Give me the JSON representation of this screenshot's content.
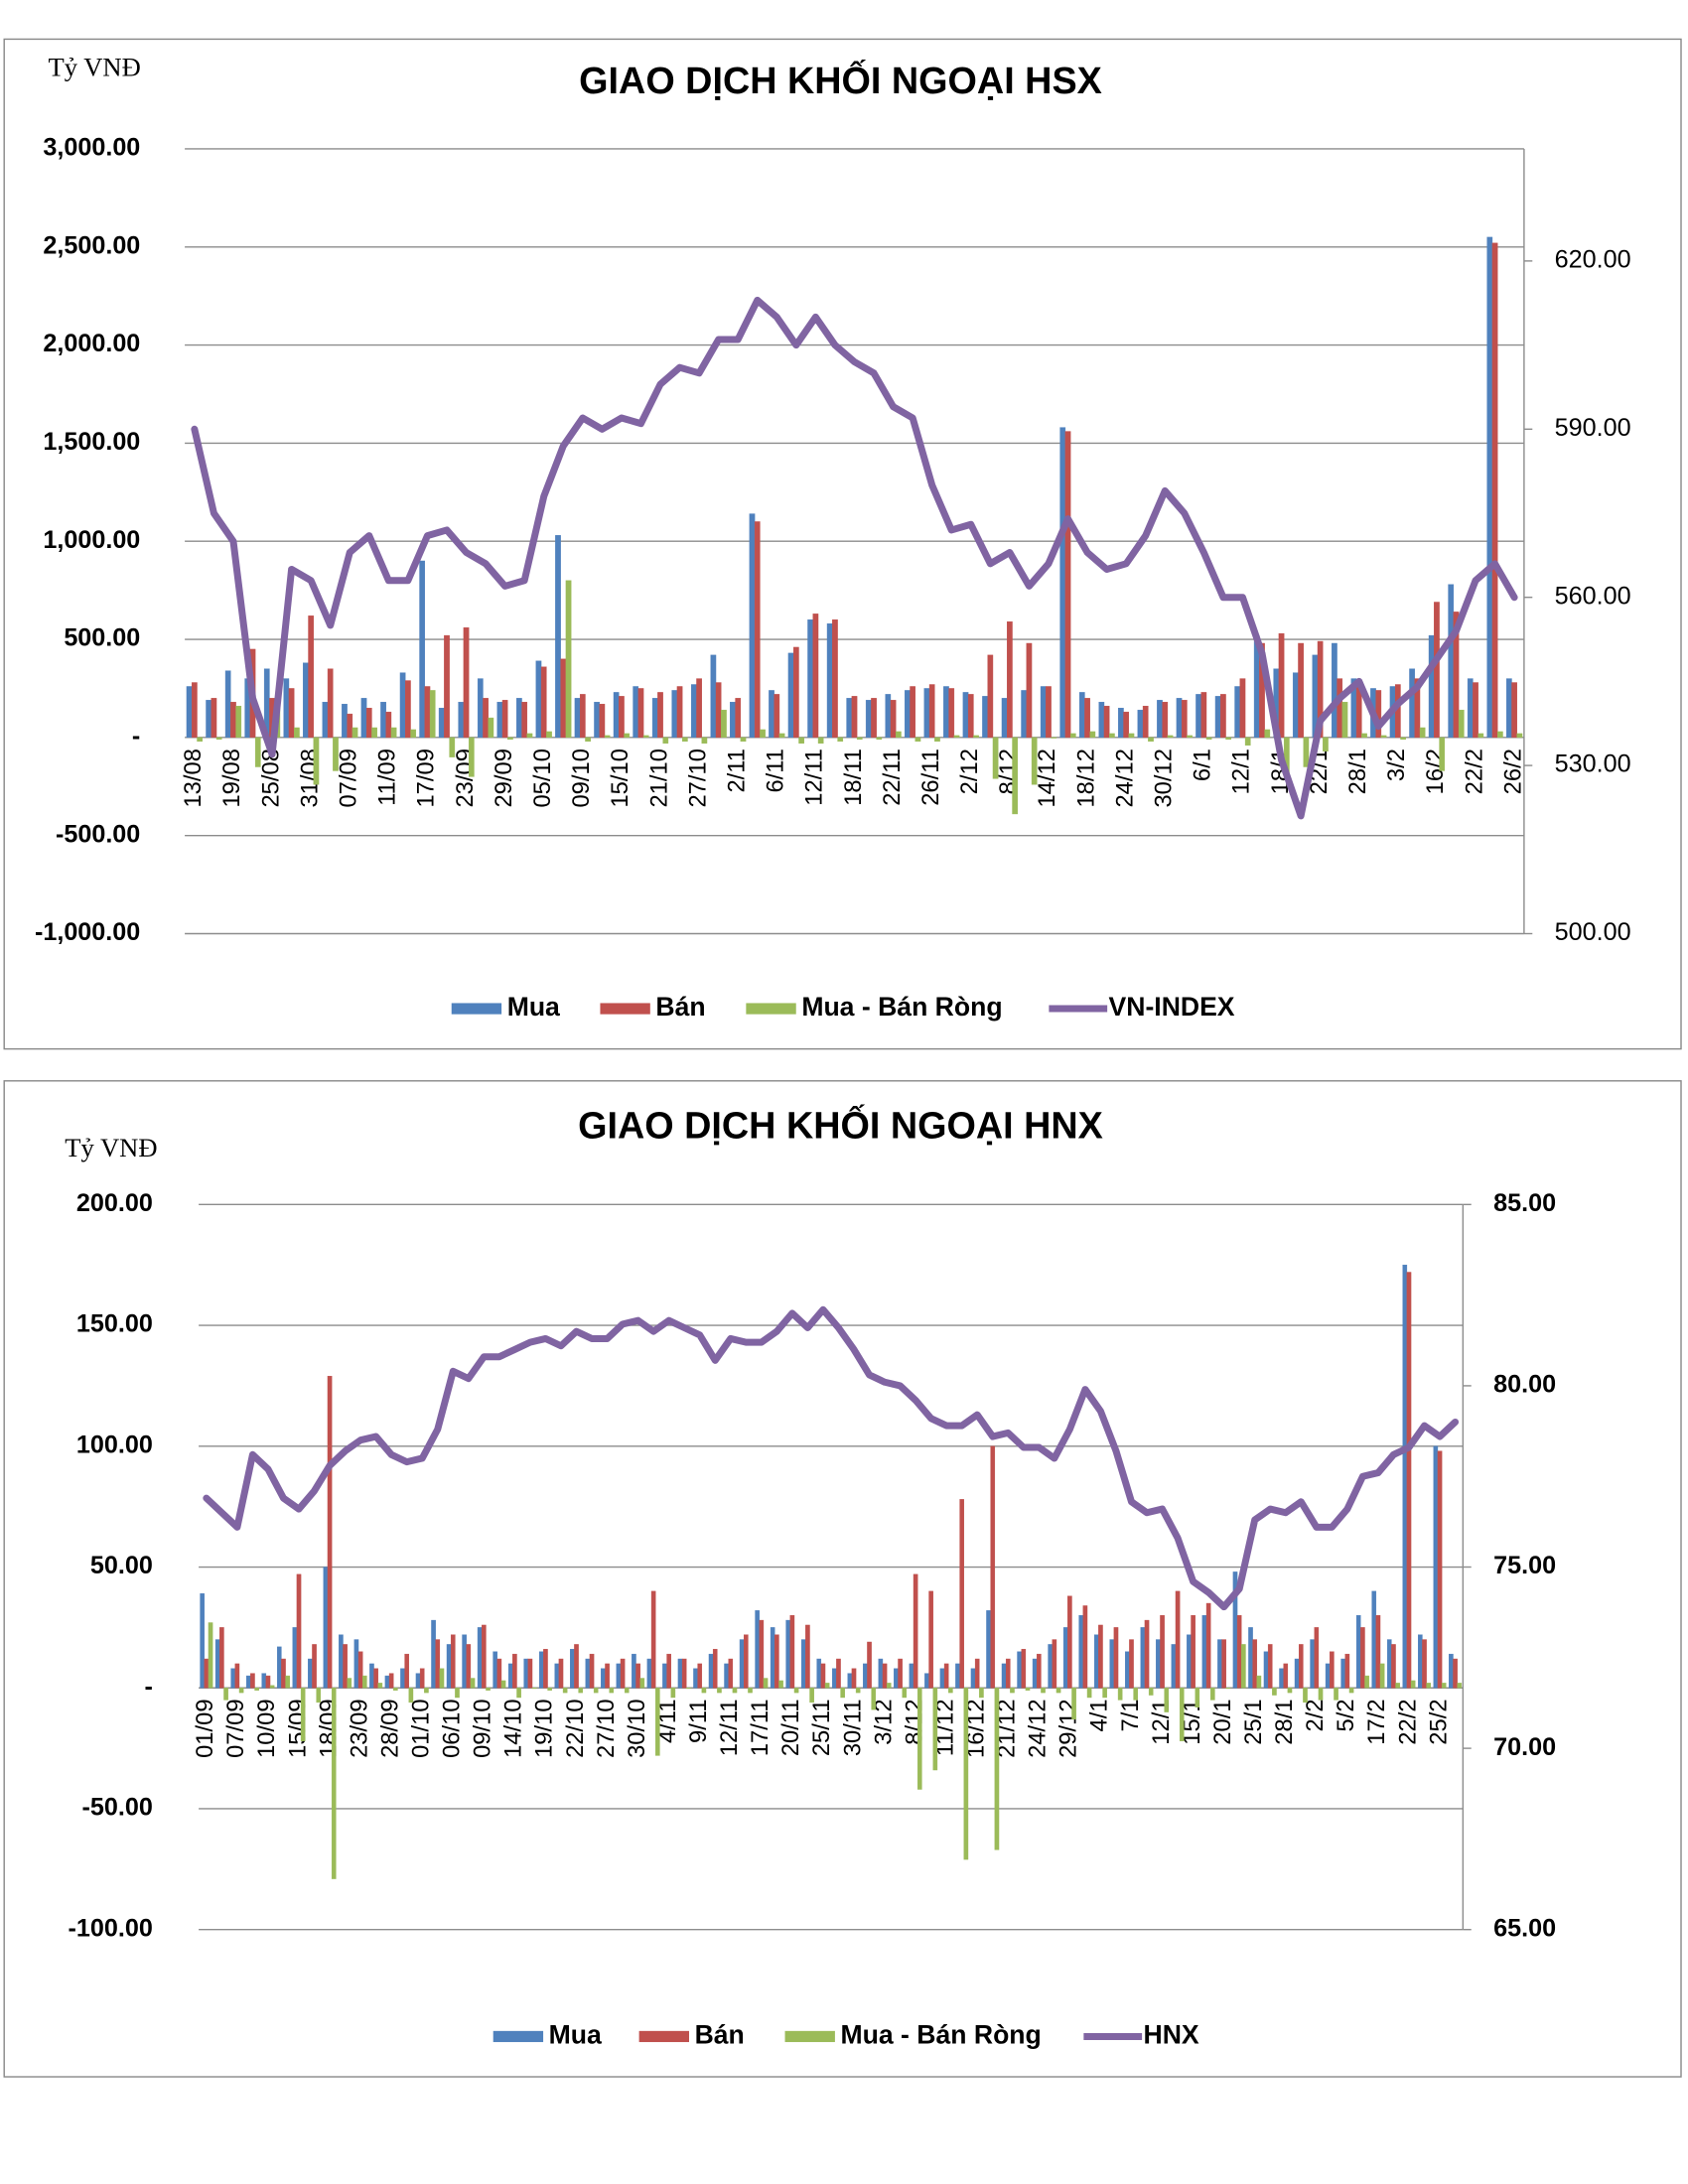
{
  "chart_data": [
    {
      "type": "bar",
      "title": "GIAO DỊCH KHỐI NGOẠI HSX",
      "y_label": "Tỷ VNĐ",
      "categories": [
        "13/08",
        null,
        "19/08",
        null,
        "25/08",
        null,
        "31/08",
        null,
        "07/09",
        null,
        "11/09",
        null,
        "17/09",
        null,
        "23/09",
        null,
        "29/09",
        null,
        "05/10",
        null,
        "09/10",
        null,
        "15/10",
        null,
        "21/10",
        null,
        "27/10",
        null,
        "2/11",
        null,
        "6/11",
        null,
        "12/11",
        null,
        "18/11",
        null,
        "22/11",
        null,
        "26/11",
        null,
        "2/12",
        null,
        "8/12",
        null,
        "14/12",
        null,
        "18/12",
        null,
        "24/12",
        null,
        "30/12",
        null,
        "6/1",
        null,
        "12/1",
        null,
        "18/1",
        null,
        "22/1",
        null,
        "28/1",
        null,
        "3/2",
        null,
        "16/2",
        null,
        "22/2",
        null,
        "26/2"
      ],
      "series": [
        {
          "name": "Mua",
          "type": "bar",
          "color": "#4f81bd",
          "values": [
            260,
            190,
            340,
            300,
            350,
            300,
            380,
            180,
            170,
            200,
            180,
            330,
            900,
            150,
            180,
            300,
            180,
            200,
            390,
            1030,
            200,
            180,
            230,
            260,
            200,
            240,
            270,
            420,
            180,
            1140,
            240,
            430,
            600,
            580,
            200,
            190,
            220,
            240,
            250,
            260,
            230,
            210,
            200,
            240,
            260,
            1580,
            230,
            180,
            150,
            140,
            190,
            200,
            220,
            210,
            260,
            520,
            350,
            330,
            420,
            480,
            300,
            250,
            260,
            350,
            520,
            780,
            300,
            2550,
            300
          ]
        },
        {
          "name": "Bán",
          "type": "bar",
          "color": "#c0504d",
          "values": [
            280,
            200,
            180,
            450,
            200,
            250,
            620,
            350,
            120,
            150,
            130,
            290,
            260,
            520,
            560,
            200,
            190,
            180,
            360,
            400,
            220,
            170,
            210,
            250,
            230,
            260,
            300,
            280,
            200,
            1100,
            220,
            460,
            630,
            600,
            210,
            200,
            190,
            260,
            270,
            250,
            220,
            420,
            590,
            480,
            260,
            1560,
            200,
            160,
            130,
            160,
            180,
            190,
            230,
            220,
            300,
            480,
            530,
            480,
            490,
            300,
            280,
            240,
            270,
            300,
            690,
            640,
            280,
            2520,
            280
          ]
        },
        {
          "name": "Mua - Bán Ròng",
          "type": "bar",
          "color": "#9bbb59",
          "values": [
            -20,
            -10,
            160,
            -150,
            150,
            50,
            -240,
            -170,
            50,
            50,
            50,
            40,
            240,
            -100,
            -200,
            100,
            -10,
            20,
            30,
            800,
            -20,
            10,
            20,
            10,
            -30,
            -20,
            -30,
            140,
            -20,
            40,
            20,
            -30,
            -30,
            -20,
            -10,
            -10,
            30,
            -20,
            -20,
            10,
            10,
            -210,
            -390,
            -240,
            0,
            20,
            30,
            20,
            20,
            -20,
            10,
            10,
            -10,
            -10,
            -40,
            40,
            -180,
            -150,
            -70,
            180,
            20,
            10,
            -10,
            50,
            -170,
            140,
            20,
            30,
            20
          ]
        },
        {
          "name": "VN-INDEX",
          "type": "line",
          "axis": "y2",
          "color": "#8064a2",
          "values": [
            590,
            575,
            570,
            542,
            532,
            565,
            563,
            555,
            568,
            571,
            563,
            563,
            571,
            572,
            568,
            566,
            562,
            563,
            578,
            587,
            592,
            590,
            592,
            591,
            598,
            601,
            600,
            606,
            606,
            613,
            610,
            605,
            610,
            605,
            602,
            600,
            594,
            592,
            580,
            572,
            573,
            566,
            568,
            562,
            566,
            574,
            568,
            565,
            566,
            571,
            579,
            575,
            568,
            560,
            560,
            550,
            531,
            521,
            538,
            542,
            545,
            537,
            541,
            544,
            549,
            554,
            563,
            566,
            560
          ]
        }
      ],
      "ylim": [
        -1000,
        3000
      ],
      "yticks": [
        {
          "value": -1000,
          "label": "-1,000.00"
        },
        {
          "value": -500,
          "label": "-500.00"
        },
        {
          "value": 0,
          "label": "-"
        },
        {
          "value": 500,
          "label": "500.00"
        },
        {
          "value": 1000,
          "label": "1,000.00"
        },
        {
          "value": 1500,
          "label": "1,500.00"
        },
        {
          "value": 2000,
          "label": "2,000.00"
        },
        {
          "value": 2500,
          "label": "2,500.00"
        },
        {
          "value": 3000,
          "label": "3,000.00"
        }
      ],
      "y2lim": [
        500,
        640
      ],
      "y2ticks": [
        {
          "value": 500,
          "label": "500.00"
        },
        {
          "value": 530,
          "label": "530.00"
        },
        {
          "value": 560,
          "label": "560.00"
        },
        {
          "value": 590,
          "label": "590.00"
        },
        {
          "value": 620,
          "label": "620.00"
        }
      ],
      "grid": true,
      "legend": "bottom"
    },
    {
      "type": "bar",
      "title": "GIAO DỊCH KHỐI NGOẠI HNX",
      "y_label": "Tỷ VNĐ",
      "categories": [
        "01/09",
        null,
        "07/09",
        null,
        "10/09",
        null,
        "15/09",
        null,
        "18/09",
        null,
        "23/09",
        null,
        "28/09",
        null,
        "01/10",
        null,
        "06/10",
        null,
        "09/10",
        null,
        "14/10",
        null,
        "19/10",
        null,
        "22/10",
        null,
        "27/10",
        null,
        "30/10",
        null,
        "4/11",
        null,
        "9/11",
        null,
        "12/11",
        null,
        "17/11",
        null,
        "20/11",
        null,
        "25/11",
        null,
        "30/11",
        null,
        "3/12",
        null,
        "8/12",
        null,
        "11/12",
        null,
        "16/12",
        null,
        "21/12",
        null,
        "24/12",
        null,
        "29/12",
        null,
        "4/1",
        null,
        "7/1",
        null,
        "12/1",
        null,
        "15/1",
        null,
        "20/1",
        null,
        "25/1",
        null,
        "28/1",
        null,
        "2/2",
        null,
        "5/2",
        null,
        "17/2",
        null,
        "22/2",
        null,
        "25/2",
        null
      ],
      "series": [
        {
          "name": "Mua",
          "type": "bar",
          "color": "#4f81bd",
          "values": [
            39,
            20,
            8,
            5,
            6,
            17,
            25,
            12,
            50,
            22,
            20,
            10,
            5,
            8,
            6,
            28,
            18,
            22,
            25,
            15,
            10,
            12,
            15,
            10,
            16,
            12,
            8,
            10,
            14,
            12,
            10,
            12,
            8,
            14,
            10,
            20,
            32,
            25,
            28,
            20,
            12,
            8,
            6,
            10,
            12,
            8,
            10,
            6,
            8,
            10,
            8,
            32,
            10,
            15,
            12,
            18,
            25,
            30,
            22,
            20,
            15,
            25,
            20,
            18,
            22,
            30,
            20,
            48,
            25,
            15,
            8,
            12,
            20,
            10,
            12,
            30,
            40,
            20,
            175,
            22,
            100,
            14
          ]
        },
        {
          "name": "Bán",
          "type": "bar",
          "color": "#c0504d",
          "values": [
            12,
            25,
            10,
            6,
            5,
            12,
            47,
            18,
            129,
            18,
            15,
            8,
            6,
            14,
            8,
            20,
            22,
            18,
            26,
            12,
            14,
            12,
            16,
            12,
            18,
            14,
            10,
            12,
            10,
            40,
            14,
            12,
            10,
            16,
            12,
            22,
            28,
            22,
            30,
            26,
            10,
            12,
            8,
            19,
            10,
            12,
            47,
            40,
            10,
            78,
            12,
            100,
            12,
            16,
            14,
            20,
            38,
            34,
            26,
            25,
            20,
            28,
            30,
            40,
            30,
            35,
            20,
            30,
            20,
            18,
            10,
            18,
            25,
            15,
            14,
            25,
            30,
            18,
            172,
            20,
            98,
            12
          ]
        },
        {
          "name": "Mua - Bán Ròng",
          "type": "bar",
          "color": "#9bbb59",
          "values": [
            27,
            -5,
            -2,
            -1,
            1,
            5,
            -22,
            -6,
            -79,
            4,
            5,
            2,
            -1,
            -6,
            -2,
            8,
            -4,
            4,
            -1,
            3,
            -4,
            0,
            -1,
            -2,
            -2,
            -2,
            -2,
            -2,
            4,
            -28,
            -4,
            0,
            -2,
            -2,
            -2,
            -2,
            4,
            3,
            -2,
            -6,
            2,
            -4,
            -2,
            -9,
            2,
            -4,
            -42,
            -34,
            -2,
            -71,
            -4,
            -67,
            -2,
            -1,
            -2,
            -2,
            -13,
            -4,
            -4,
            -5,
            -5,
            -3,
            -10,
            -22,
            -8,
            -5,
            0,
            18,
            5,
            -3,
            -2,
            -6,
            -5,
            -5,
            -2,
            5,
            10,
            2,
            3,
            2,
            2,
            2
          ]
        },
        {
          "name": "HNX",
          "type": "line",
          "axis": "y2",
          "color": "#8064a2",
          "values": [
            76.9,
            76.5,
            76.1,
            78.1,
            77.7,
            76.9,
            76.6,
            77.1,
            77.8,
            78.2,
            78.5,
            78.6,
            78.1,
            77.9,
            78.0,
            78.8,
            80.4,
            80.2,
            80.8,
            80.8,
            81.0,
            81.2,
            81.3,
            81.1,
            81.5,
            81.3,
            81.3,
            81.7,
            81.8,
            81.5,
            81.8,
            81.6,
            81.4,
            80.7,
            81.3,
            81.2,
            81.2,
            81.5,
            82.0,
            81.6,
            82.1,
            81.6,
            81.0,
            80.3,
            80.1,
            80.0,
            79.6,
            79.1,
            78.9,
            78.9,
            79.2,
            78.6,
            78.7,
            78.3,
            78.3,
            78.0,
            78.8,
            79.9,
            79.3,
            78.2,
            76.8,
            76.5,
            76.6,
            75.8,
            74.6,
            74.3,
            73.9,
            74.4,
            76.3,
            76.6,
            76.5,
            76.8,
            76.1,
            76.1,
            76.6,
            77.5,
            77.6,
            78.1,
            78.3,
            78.9,
            78.6,
            79.0
          ]
        }
      ],
      "ylim": [
        -100,
        200
      ],
      "yticks": [
        {
          "value": -100,
          "label": "-100.00"
        },
        {
          "value": -50,
          "label": "-50.00"
        },
        {
          "value": 0,
          "label": "-"
        },
        {
          "value": 50,
          "label": "50.00"
        },
        {
          "value": 100,
          "label": "100.00"
        },
        {
          "value": 150,
          "label": "150.00"
        },
        {
          "value": 200,
          "label": "200.00"
        }
      ],
      "y2lim": [
        65,
        85
      ],
      "y2ticks": [
        {
          "value": 65,
          "label": "65.00"
        },
        {
          "value": 70,
          "label": "70.00"
        },
        {
          "value": 75,
          "label": "75.00"
        },
        {
          "value": 80,
          "label": "80.00"
        },
        {
          "value": 85,
          "label": "85.00"
        }
      ],
      "grid": true,
      "legend": "bottom"
    }
  ]
}
